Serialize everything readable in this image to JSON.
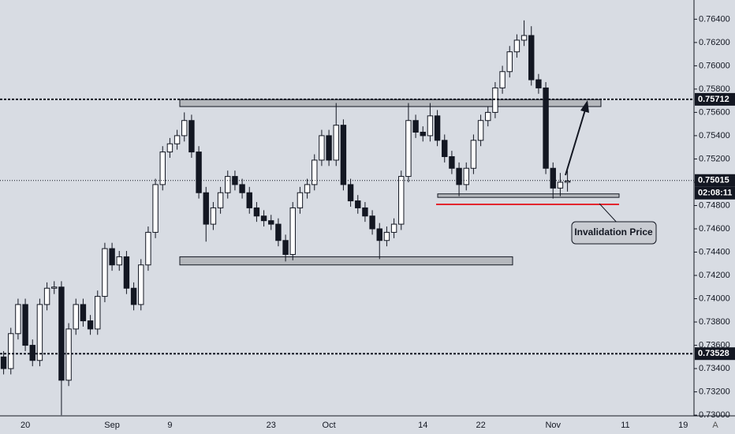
{
  "chart_data": {
    "type": "candlestick",
    "background": "#d8dce3",
    "up_color": "#ffffff",
    "down_color": "#131722",
    "wick_color": "#131722",
    "categories": [
      null,
      null,
      null,
      "20",
      null,
      null,
      null,
      null,
      null,
      null,
      null,
      null,
      null,
      null,
      null,
      "Sep",
      null,
      null,
      null,
      null,
      null,
      null,
      null,
      "9",
      null,
      null,
      null,
      null,
      null,
      null,
      null,
      null,
      null,
      null,
      null,
      null,
      null,
      "23",
      null,
      null,
      null,
      null,
      null,
      null,
      null,
      "Oct",
      null,
      null,
      null,
      null,
      null,
      null,
      null,
      null,
      null,
      null,
      null,
      null,
      "14",
      null,
      null,
      null,
      null,
      null,
      null,
      null,
      "22",
      null,
      null,
      null,
      null,
      null,
      null,
      null,
      null,
      null,
      "Nov",
      null,
      null,
      null,
      null,
      null,
      null,
      null,
      null,
      null,
      "11",
      null,
      null,
      null,
      null,
      null,
      null,
      null,
      "19",
      null
    ],
    "open": [
      0.735,
      0.734,
      0.737,
      0.7395,
      0.736,
      0.7347,
      0.7395,
      0.7409,
      0.741,
      0.733,
      0.7374,
      0.7395,
      0.7381,
      0.7374,
      0.7402,
      0.7443,
      0.7429,
      0.7436,
      0.7409,
      0.7395,
      0.7429,
      0.7457,
      0.7498,
      0.7526,
      0.7533,
      0.754,
      0.7553,
      0.7526,
      0.7491,
      0.7464,
      0.7478,
      0.7491,
      0.7505,
      0.7498,
      0.7491,
      0.7478,
      0.7471,
      0.7467,
      0.7464,
      0.745,
      0.7438,
      0.7478,
      0.7491,
      0.7498,
      0.7519,
      0.754,
      0.7519,
      0.7549,
      0.7498,
      0.7484,
      0.7478,
      0.7471,
      0.746,
      0.745,
      0.7457,
      0.7464,
      0.7505,
      0.7553,
      0.7543,
      0.754,
      0.7557,
      0.7536,
      0.7522,
      0.7512,
      0.7498,
      0.7512,
      0.7536,
      0.7553,
      0.756,
      0.7581,
      0.7595,
      0.7612,
      0.7622,
      0.7626,
      0.7588,
      0.7581,
      0.7512,
      0.7495,
      0.75,
      null,
      null,
      null,
      null,
      null,
      null,
      null,
      null,
      null,
      null,
      null,
      null,
      null,
      null,
      null,
      null,
      null
    ],
    "high": [
      0.7355,
      0.7375,
      0.74,
      0.74,
      0.7365,
      0.74,
      0.7414,
      0.7415,
      0.7415,
      0.7379,
      0.74,
      0.74,
      0.7386,
      0.7407,
      0.7448,
      0.7448,
      0.7441,
      0.7441,
      0.7414,
      0.7434,
      0.7462,
      0.7503,
      0.7531,
      0.7538,
      0.7545,
      0.756,
      0.7558,
      0.7531,
      0.7496,
      0.7483,
      0.7496,
      0.751,
      0.751,
      0.7503,
      0.7496,
      0.7483,
      0.7476,
      0.7472,
      0.7469,
      0.7455,
      0.7483,
      0.7496,
      0.7503,
      0.7524,
      0.7545,
      0.7545,
      0.7568,
      0.7554,
      0.7503,
      0.7489,
      0.7483,
      0.7476,
      0.7465,
      0.7462,
      0.7469,
      0.751,
      0.7568,
      0.7558,
      0.7548,
      0.7568,
      0.7562,
      0.7541,
      0.7527,
      0.7517,
      0.7517,
      0.7541,
      0.7558,
      0.7565,
      0.7586,
      0.76,
      0.7617,
      0.7627,
      0.7639,
      0.7634,
      0.7593,
      0.7586,
      0.7517,
      0.7508,
      0.751,
      null,
      null,
      null,
      null,
      null,
      null,
      null,
      null,
      null,
      null,
      null,
      null,
      null,
      null,
      null,
      null,
      null
    ],
    "low": [
      0.7335,
      0.7335,
      0.7365,
      0.7355,
      0.7342,
      0.7342,
      0.739,
      0.7404,
      0.73,
      0.7325,
      0.7369,
      0.7376,
      0.7369,
      0.7369,
      0.7397,
      0.7424,
      0.7424,
      0.7404,
      0.739,
      0.739,
      0.7424,
      0.7452,
      0.7493,
      0.7521,
      0.7528,
      0.7535,
      0.7521,
      0.7486,
      0.7449,
      0.7459,
      0.7473,
      0.7486,
      0.7493,
      0.7486,
      0.7473,
      0.7466,
      0.7462,
      0.7459,
      0.7445,
      0.7432,
      0.7433,
      0.7473,
      0.7486,
      0.7493,
      0.7514,
      0.7514,
      0.7514,
      0.7493,
      0.7479,
      0.7473,
      0.7466,
      0.7455,
      0.7434,
      0.7445,
      0.7452,
      0.7459,
      0.75,
      0.7538,
      0.7535,
      0.7535,
      0.7531,
      0.7517,
      0.7507,
      0.7488,
      0.7493,
      0.7507,
      0.7531,
      0.7548,
      0.7555,
      0.7576,
      0.759,
      0.7607,
      0.7617,
      0.7583,
      0.7576,
      0.7507,
      0.7486,
      0.7488,
      0.7492,
      null,
      null,
      null,
      null,
      null,
      null,
      null,
      null,
      null,
      null,
      null,
      null,
      null,
      null,
      null,
      null,
      null
    ],
    "close": [
      0.734,
      0.737,
      0.7395,
      0.736,
      0.7347,
      0.7395,
      0.7409,
      0.741,
      0.733,
      0.7374,
      0.7395,
      0.7381,
      0.7374,
      0.7402,
      0.7443,
      0.7429,
      0.7436,
      0.7409,
      0.7395,
      0.7429,
      0.7457,
      0.7498,
      0.7526,
      0.7533,
      0.754,
      0.7553,
      0.7526,
      0.7491,
      0.7464,
      0.7478,
      0.7491,
      0.7505,
      0.7498,
      0.7491,
      0.7478,
      0.7471,
      0.7467,
      0.7464,
      0.745,
      0.7438,
      0.7478,
      0.7491,
      0.7498,
      0.7519,
      0.754,
      0.7519,
      0.7549,
      0.7498,
      0.7484,
      0.7478,
      0.7471,
      0.746,
      0.745,
      0.7457,
      0.7464,
      0.7505,
      0.7553,
      0.7543,
      0.754,
      0.7557,
      0.7536,
      0.7522,
      0.7512,
      0.7498,
      0.7512,
      0.7536,
      0.7553,
      0.756,
      0.7581,
      0.7595,
      0.7612,
      0.7622,
      0.7626,
      0.7588,
      0.7581,
      0.7512,
      0.7495,
      0.75,
      0.7501,
      null,
      null,
      null,
      null,
      null,
      null,
      null,
      null,
      null,
      null,
      null,
      null,
      null,
      null,
      null,
      null,
      null
    ],
    "ylim": [
      0.72994,
      0.76565
    ],
    "yticks": [
      {
        "value": 0.73,
        "label": "0.73000"
      },
      {
        "value": 0.732,
        "label": "0.73200"
      },
      {
        "value": 0.734,
        "label": "0.73400"
      },
      {
        "value": 0.736,
        "label": "0.73600"
      },
      {
        "value": 0.738,
        "label": "0.73800"
      },
      {
        "value": 0.74,
        "label": "0.74000"
      },
      {
        "value": 0.742,
        "label": "0.74200"
      },
      {
        "value": 0.744,
        "label": "0.74400"
      },
      {
        "value": 0.746,
        "label": "0.74600"
      },
      {
        "value": 0.748,
        "label": "0.74800"
      },
      {
        "value": 0.75,
        "label": "0.75000"
      },
      {
        "value": 0.752,
        "label": "0.75200"
      },
      {
        "value": 0.754,
        "label": "0.75400"
      },
      {
        "value": 0.756,
        "label": "0.75600"
      },
      {
        "value": 0.758,
        "label": "0.75800"
      },
      {
        "value": 0.76,
        "label": "0.76000"
      },
      {
        "value": 0.762,
        "label": "0.76200"
      },
      {
        "value": 0.764,
        "label": "0.76400"
      }
    ],
    "price_lines": [
      {
        "value": 0.75712,
        "style": "dashed"
      },
      {
        "value": 0.73528,
        "style": "dashed"
      },
      {
        "value": 0.75015,
        "style": "dotted"
      }
    ],
    "countdown": "02:08:11",
    "zones": [
      {
        "low": 0.7565,
        "high": 0.7571
      },
      {
        "low": 0.7429,
        "high": 0.7436
      },
      {
        "low": 0.7487,
        "high": 0.749
      }
    ],
    "zone_color": "#b5b8bd",
    "invalidation": {
      "value": 0.7481,
      "color": "#e3262e",
      "text": "Invalidation Price"
    },
    "auto_button": "A"
  }
}
